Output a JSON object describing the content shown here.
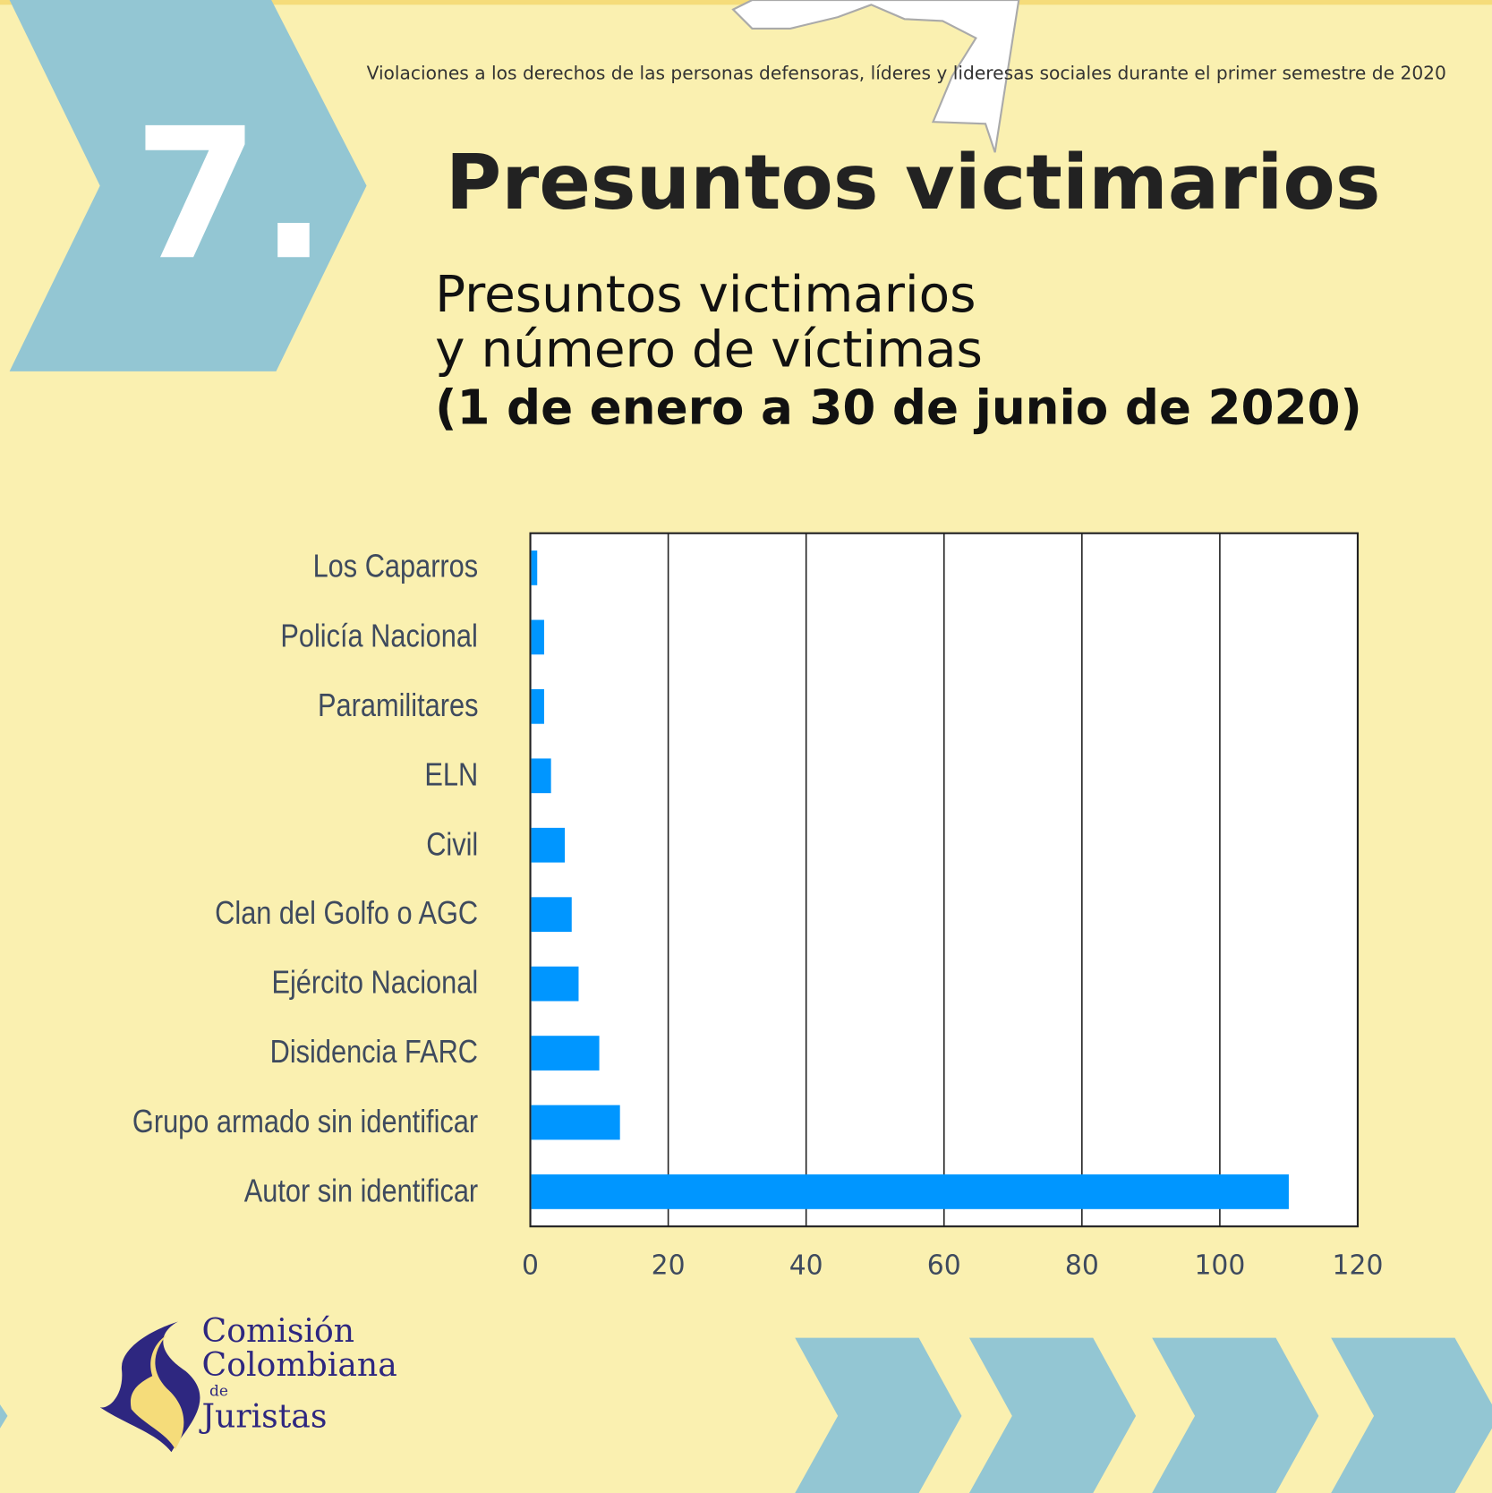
{
  "header": {
    "text": "Violaciones a los derechos de las personas defensoras, líderes y lideresas sociales durante el primer semestre de 2020"
  },
  "section_number": "7.",
  "title": "Presuntos victimarios",
  "colors": {
    "background": "#FAF0B0",
    "chevron": "#93C6D3",
    "bar": "#0096FF",
    "logo": "#2E2780"
  },
  "chart_data": {
    "type": "bar",
    "orientation": "horizontal",
    "title_lines": [
      "Presuntos victimarios",
      "y número de víctimas",
      "(1 de enero a 30 de junio de 2020)"
    ],
    "categories": [
      "Los Caparros",
      "Policía Nacional",
      "Paramilitares",
      "ELN",
      "Civil",
      "Clan del Golfo o AGC",
      "Ejército Nacional",
      "Disidencia FARC",
      "Grupo armado sin identificar",
      "Autor sin identificar"
    ],
    "values": [
      1,
      2,
      2,
      3,
      5,
      6,
      7,
      10,
      13,
      110
    ],
    "xlim": [
      0,
      120
    ],
    "xticks": [
      "0",
      "20",
      "40",
      "60",
      "80",
      "100",
      "120"
    ],
    "grid": "vertical"
  },
  "logo": {
    "line1": "Comisión",
    "line2": "Colombiana",
    "line3": "de",
    "line4": "Juristas"
  }
}
